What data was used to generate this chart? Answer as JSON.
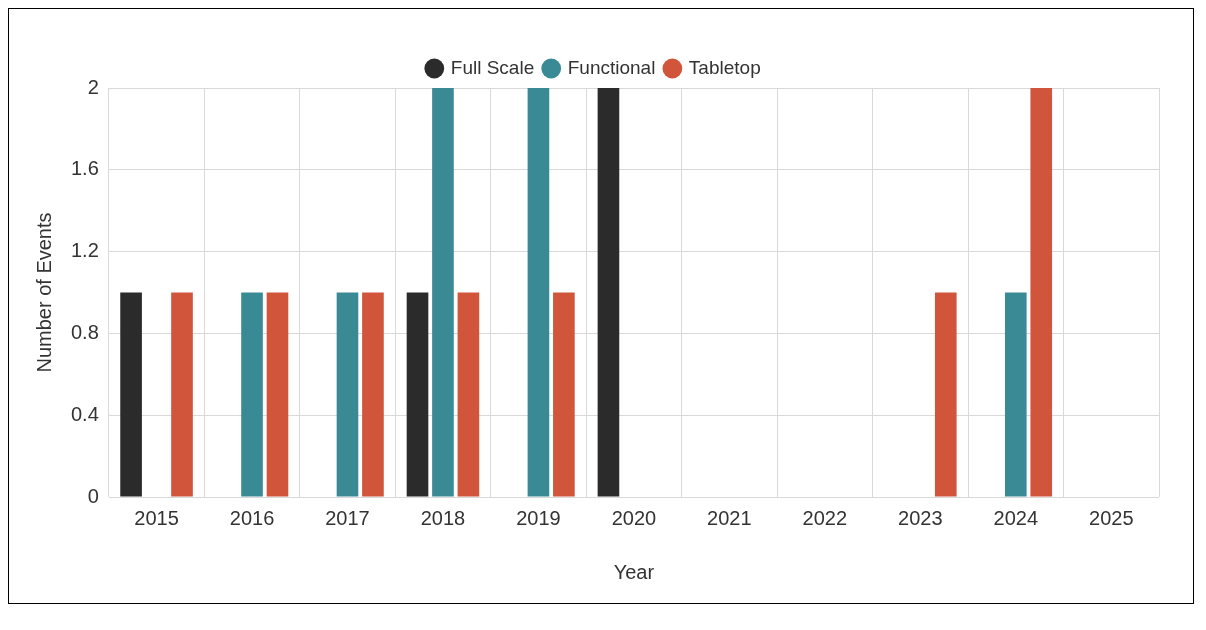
{
  "chart_data": {
    "type": "bar",
    "xlabel": "Year",
    "ylabel": "Number of Events",
    "categories": [
      "2015",
      "2016",
      "2017",
      "2018",
      "2019",
      "2020",
      "2021",
      "2022",
      "2023",
      "2024",
      "2025"
    ],
    "series": [
      {
        "name": "Full Scale",
        "color": "#2b2b2b",
        "values": [
          1,
          0,
          0,
          1,
          0,
          2,
          0,
          0,
          0,
          0,
          0
        ]
      },
      {
        "name": "Functional",
        "color": "#3a8a96",
        "values": [
          0,
          1,
          1,
          2,
          2,
          0,
          0,
          0,
          0,
          1,
          0
        ]
      },
      {
        "name": "Tabletop",
        "color": "#d0553a",
        "values": [
          1,
          1,
          1,
          1,
          1,
          0,
          0,
          0,
          1,
          2,
          0
        ]
      }
    ],
    "ylim": [
      0,
      2
    ],
    "yticks": [
      0,
      0.4,
      0.8,
      1.2,
      1.6,
      2
    ],
    "grid": true,
    "legend": "top"
  }
}
